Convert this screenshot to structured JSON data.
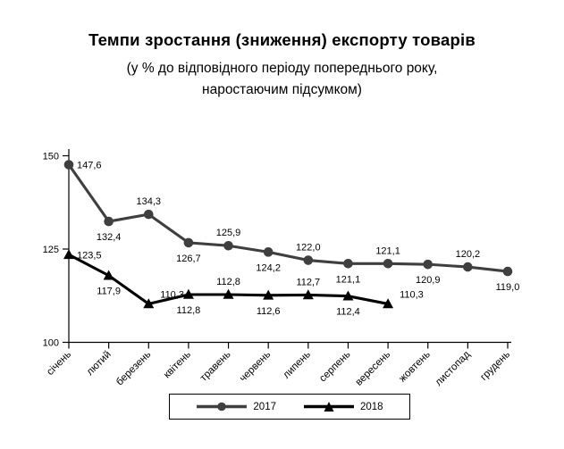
{
  "title": "Темпи зростання (зниження) експорту товарів",
  "subtitle_line1": "(у % до відповідного періоду попереднього року,",
  "subtitle_line2": "наростаючим підсумком)",
  "chart_data": {
    "type": "line",
    "title": "Темпи зростання (зниження) експорту товарів",
    "subtitle": "(у % до відповідного періоду попереднього року, наростаючим підсумком)",
    "categories": [
      "січень",
      "лютий",
      "березень",
      "квітень",
      "травень",
      "червень",
      "липень",
      "серпень",
      "вересень",
      "жовтень",
      "листопад",
      "грудень"
    ],
    "yticks": [
      100,
      125,
      150
    ],
    "ylim": [
      100,
      152
    ],
    "grid": false,
    "legend_position": "bottom",
    "decimal_separator": ",",
    "axis_color": "#000000",
    "series": [
      {
        "name": "2017",
        "color": "#3f3f3f",
        "marker": "circle",
        "values": [
          147.6,
          132.4,
          134.3,
          126.7,
          125.9,
          124.2,
          122.0,
          121.1,
          121.1,
          120.9,
          120.2,
          119.0
        ],
        "label_positions": [
          "right",
          "below",
          "above",
          "below",
          "above",
          "below",
          "above",
          "below",
          "above",
          "below",
          "above",
          "below"
        ]
      },
      {
        "name": "2018",
        "color": "#000000",
        "marker": "triangle",
        "values": [
          123.5,
          117.9,
          110.3,
          112.8,
          112.8,
          112.6,
          112.7,
          112.4,
          110.3
        ],
        "label_positions": [
          "right",
          "below",
          "above-right",
          "below",
          "above",
          "below",
          "above",
          "below",
          "above-right"
        ]
      }
    ]
  }
}
